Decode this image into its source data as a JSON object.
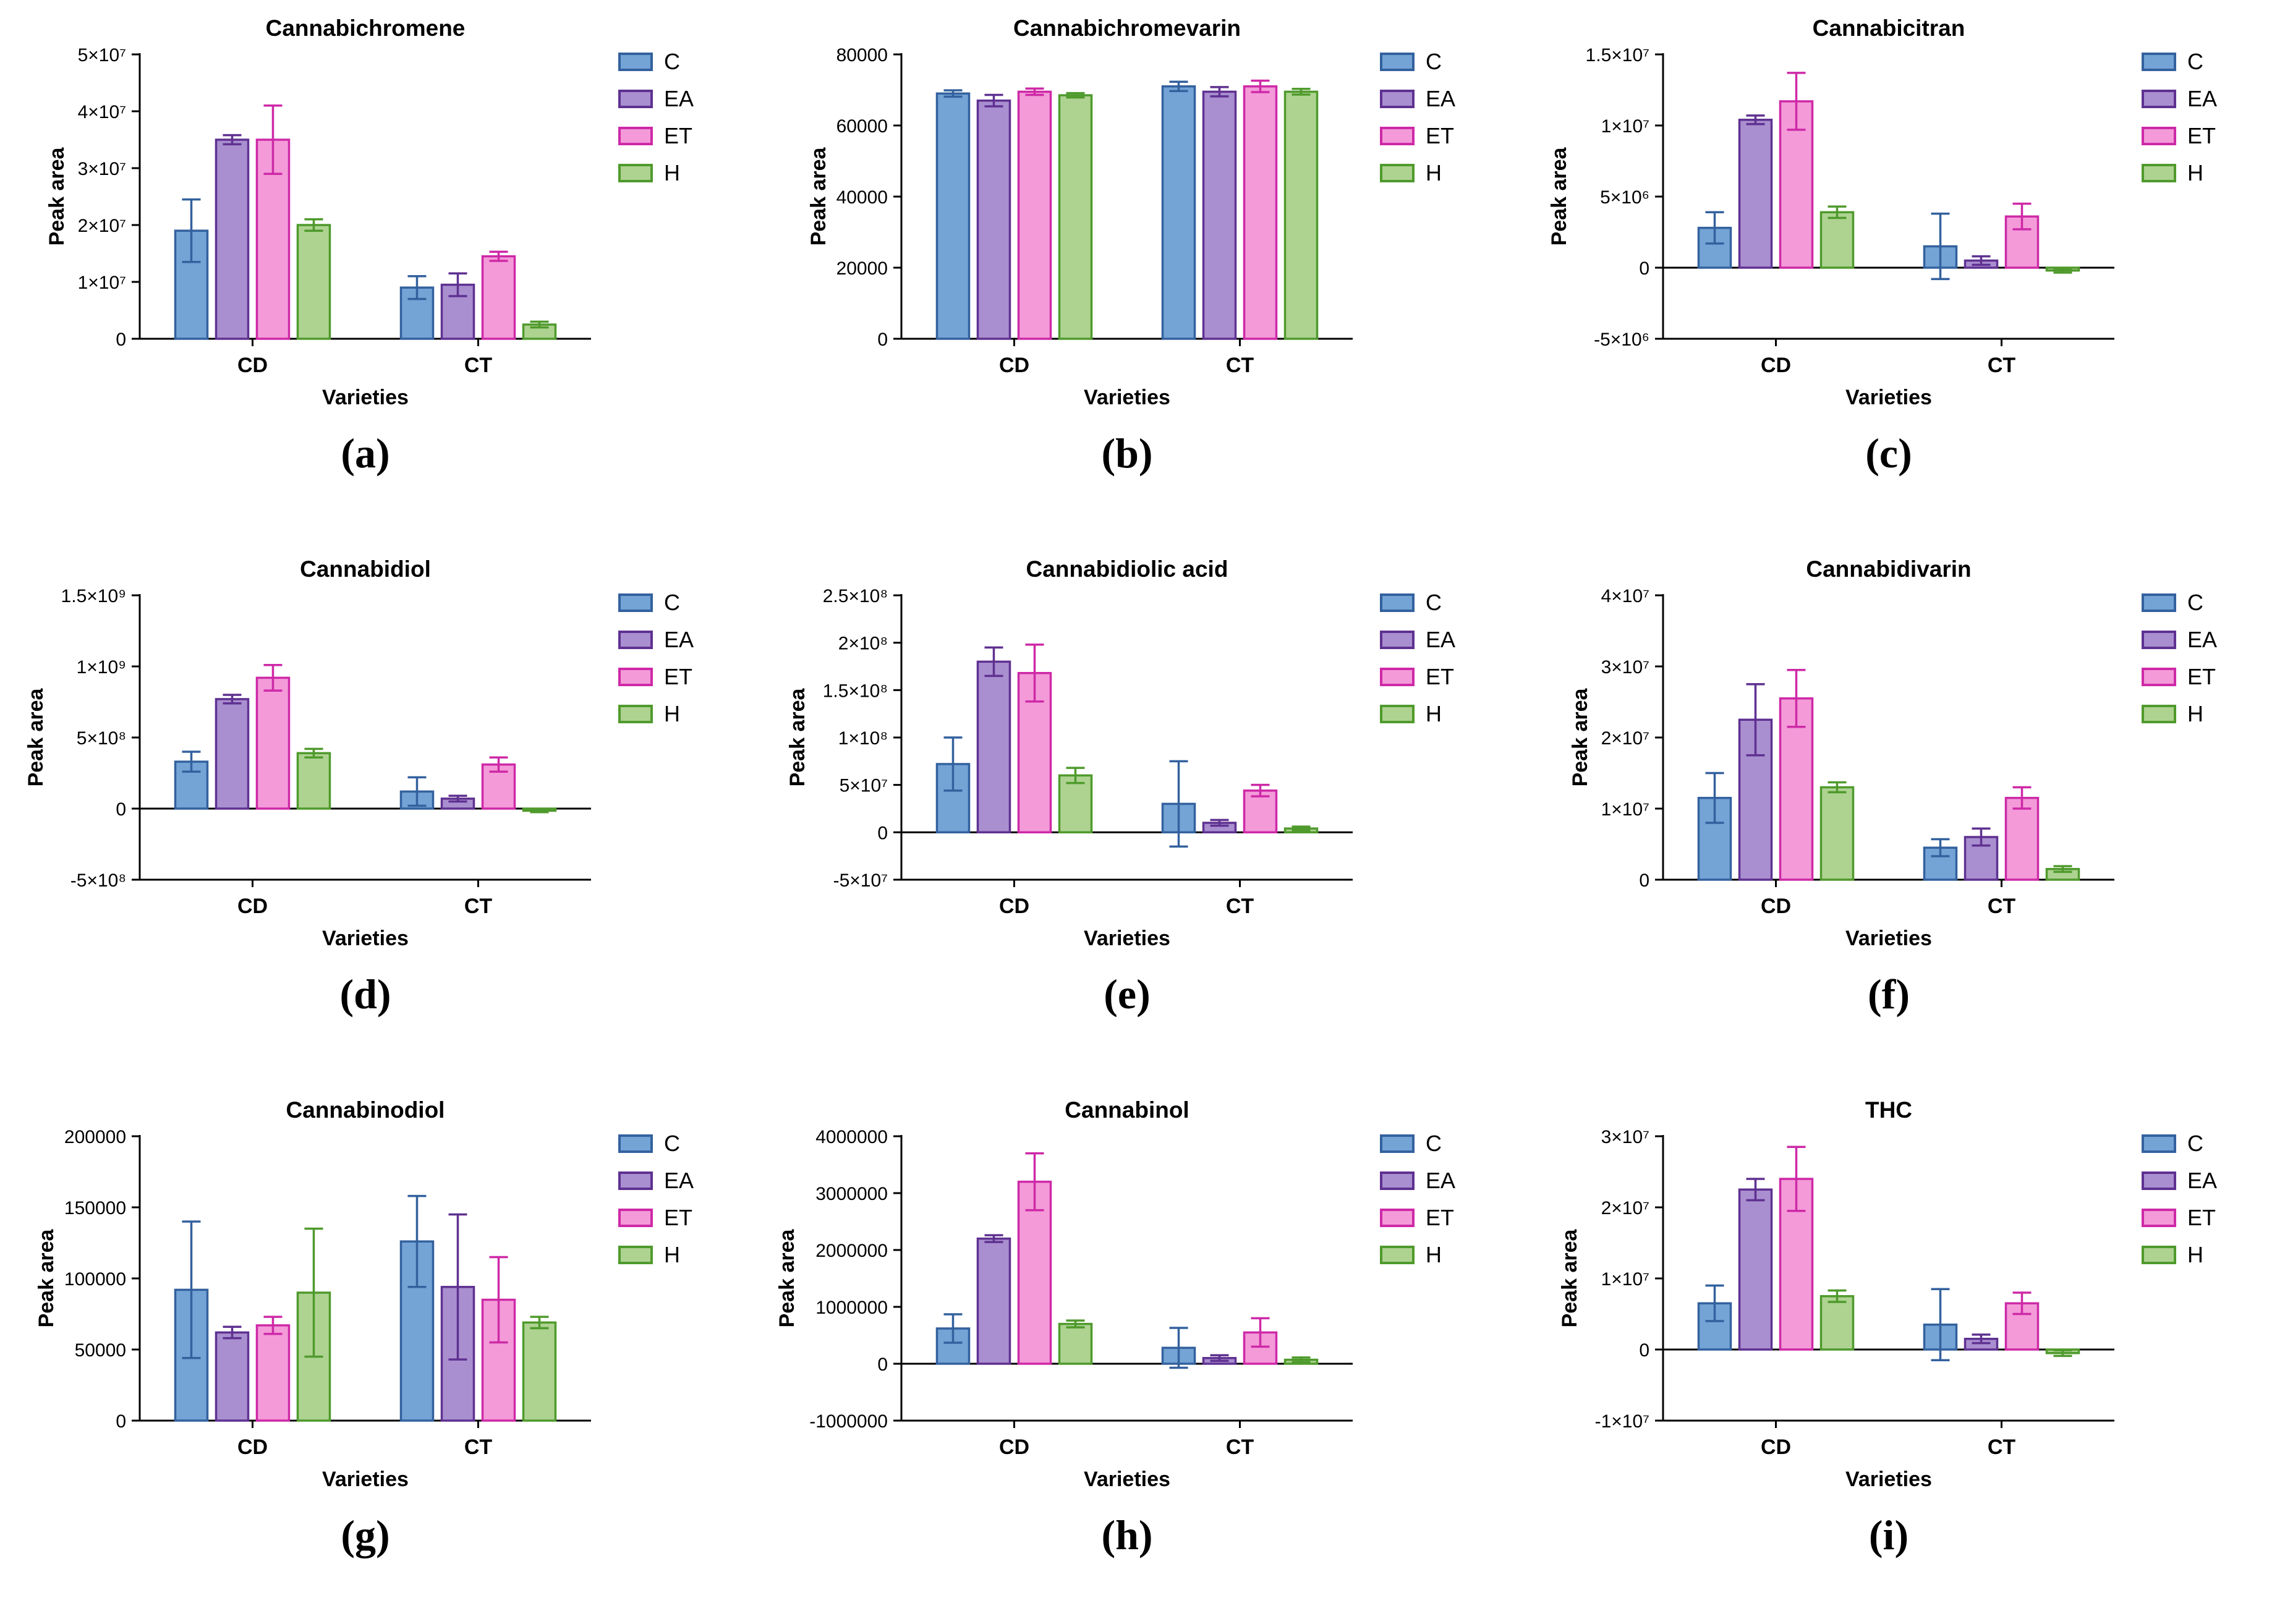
{
  "figure": {
    "background": "#ffffff",
    "series_styles": [
      {
        "name": "C",
        "fill": "#74a3d6",
        "edge": "#33619e"
      },
      {
        "name": "EA",
        "fill": "#a98fd0",
        "edge": "#5f3191"
      },
      {
        "name": "ET",
        "fill": "#f49ad9",
        "edge": "#ce29a7"
      },
      {
        "name": "H",
        "fill": "#aed391",
        "edge": "#4f9a2c"
      }
    ]
  },
  "chart_data": [
    {
      "type": "bar",
      "panel_label": "(a)",
      "title": "Cannabichromene",
      "xlabel": "Varieties",
      "ylabel": "Peak area",
      "categories": [
        "CD",
        "CT"
      ],
      "ylim": [
        0,
        50000000.0
      ],
      "yticks": [
        0,
        10000000.0,
        20000000.0,
        30000000.0,
        40000000.0,
        50000000.0
      ],
      "ytick_labels": [
        "0",
        "1×10⁷",
        "2×10⁷",
        "3×10⁷",
        "4×10⁷",
        "5×10⁷"
      ],
      "legend": [
        "C",
        "EA",
        "ET",
        "H"
      ],
      "series": [
        {
          "name": "C",
          "values": [
            19000000.0,
            9000000.0
          ],
          "errors": [
            5500000.0,
            2000000.0
          ]
        },
        {
          "name": "EA",
          "values": [
            35000000.0,
            9500000.0
          ],
          "errors": [
            800000.0,
            2000000.0
          ]
        },
        {
          "name": "ET",
          "values": [
            35000000.0,
            14500000.0
          ],
          "errors": [
            6000000.0,
            800000.0
          ]
        },
        {
          "name": "H",
          "values": [
            20000000.0,
            2500000.0
          ],
          "errors": [
            1000000.0,
            500000.0
          ]
        }
      ]
    },
    {
      "type": "bar",
      "panel_label": "(b)",
      "title": "Cannabichromevarin",
      "xlabel": "Varieties",
      "ylabel": "Peak area",
      "categories": [
        "CD",
        "CT"
      ],
      "ylim": [
        0,
        80000
      ],
      "yticks": [
        0,
        20000,
        40000,
        60000,
        80000
      ],
      "ytick_labels": [
        "0",
        "20000",
        "40000",
        "60000",
        "80000"
      ],
      "legend": [
        "C",
        "EA",
        "ET",
        "H"
      ],
      "series": [
        {
          "name": "C",
          "values": [
            69000,
            71000
          ],
          "errors": [
            900,
            1300
          ]
        },
        {
          "name": "EA",
          "values": [
            67000,
            69500
          ],
          "errors": [
            1600,
            1300
          ]
        },
        {
          "name": "ET",
          "values": [
            69500,
            71000
          ],
          "errors": [
            900,
            1600
          ]
        },
        {
          "name": "H",
          "values": [
            68500,
            69500
          ],
          "errors": [
            600,
            800
          ]
        }
      ]
    },
    {
      "type": "bar",
      "panel_label": "(c)",
      "title": "Cannabicitran",
      "xlabel": "Varieties",
      "ylabel": "Peak area",
      "categories": [
        "CD",
        "CT"
      ],
      "ylim": [
        -5000000.0,
        15000000.0
      ],
      "yticks": [
        -5000000.0,
        0,
        5000000.0,
        10000000.0,
        15000000.0
      ],
      "ytick_labels": [
        "-5×10⁶",
        "0",
        "5×10⁶",
        "1×10⁷",
        "1.5×10⁷"
      ],
      "legend": [
        "C",
        "EA",
        "ET",
        "H"
      ],
      "series": [
        {
          "name": "C",
          "values": [
            2800000.0,
            1500000.0
          ],
          "errors": [
            1100000.0,
            2300000.0
          ]
        },
        {
          "name": "EA",
          "values": [
            10400000.0,
            500000.0
          ],
          "errors": [
            300000.0,
            300000.0
          ]
        },
        {
          "name": "ET",
          "values": [
            11700000.0,
            3600000.0
          ],
          "errors": [
            2000000.0,
            900000.0
          ]
        },
        {
          "name": "H",
          "values": [
            3900000.0,
            -200000.0
          ],
          "errors": [
            400000.0,
            150000.0
          ]
        }
      ]
    },
    {
      "type": "bar",
      "panel_label": "(d)",
      "title": "Cannabidiol",
      "xlabel": "Varieties",
      "ylabel": "Peak area",
      "categories": [
        "CD",
        "CT"
      ],
      "ylim": [
        -500000000.0,
        1500000000.0
      ],
      "yticks": [
        -500000000.0,
        0,
        500000000.0,
        1000000000.0,
        1500000000.0
      ],
      "ytick_labels": [
        "-5×10⁸",
        "0",
        "5×10⁸",
        "1×10⁹",
        "1.5×10⁹"
      ],
      "legend": [
        "C",
        "EA",
        "ET",
        "H"
      ],
      "series": [
        {
          "name": "C",
          "values": [
            330000000.0,
            120000000.0
          ],
          "errors": [
            70000000.0,
            100000000.0
          ]
        },
        {
          "name": "EA",
          "values": [
            770000000.0,
            70000000.0
          ],
          "errors": [
            30000000.0,
            20000000.0
          ]
        },
        {
          "name": "ET",
          "values": [
            920000000.0,
            310000000.0
          ],
          "errors": [
            90000000.0,
            50000000.0
          ]
        },
        {
          "name": "H",
          "values": [
            390000000.0,
            -15000000.0
          ],
          "errors": [
            30000000.0,
            10000000.0
          ]
        }
      ]
    },
    {
      "type": "bar",
      "panel_label": "(e)",
      "title": "Cannabidiolic acid",
      "xlabel": "Varieties",
      "ylabel": "Peak area",
      "categories": [
        "CD",
        "CT"
      ],
      "ylim": [
        -50000000.0,
        250000000.0
      ],
      "yticks": [
        -50000000.0,
        0,
        50000000.0,
        100000000.0,
        150000000.0,
        200000000.0,
        250000000.0
      ],
      "ytick_labels": [
        "-5×10⁷",
        "0",
        "5×10⁷",
        "1×10⁸",
        "1.5×10⁸",
        "2×10⁸",
        "2.5×10⁸"
      ],
      "legend": [
        "C",
        "EA",
        "ET",
        "H"
      ],
      "series": [
        {
          "name": "C",
          "values": [
            72000000.0,
            30000000.0
          ],
          "errors": [
            28000000.0,
            45000000.0
          ]
        },
        {
          "name": "EA",
          "values": [
            180000000.0,
            10000000.0
          ],
          "errors": [
            15000000.0,
            3000000.0
          ]
        },
        {
          "name": "ET",
          "values": [
            168000000.0,
            44000000.0
          ],
          "errors": [
            30000000.0,
            6000000.0
          ]
        },
        {
          "name": "H",
          "values": [
            60000000.0,
            4000000.0
          ],
          "errors": [
            8000000.0,
            2000000.0
          ]
        }
      ]
    },
    {
      "type": "bar",
      "panel_label": "(f)",
      "title": "Cannabidivarin",
      "xlabel": "Varieties",
      "ylabel": "Peak area",
      "categories": [
        "CD",
        "CT"
      ],
      "ylim": [
        0,
        40000000.0
      ],
      "yticks": [
        0,
        10000000.0,
        20000000.0,
        30000000.0,
        40000000.0
      ],
      "ytick_labels": [
        "0",
        "1×10⁷",
        "2×10⁷",
        "3×10⁷",
        "4×10⁷"
      ],
      "legend": [
        "C",
        "EA",
        "ET",
        "H"
      ],
      "series": [
        {
          "name": "C",
          "values": [
            11500000.0,
            4500000.0
          ],
          "errors": [
            3500000.0,
            1200000.0
          ]
        },
        {
          "name": "EA",
          "values": [
            22500000.0,
            6000000.0
          ],
          "errors": [
            5000000.0,
            1200000.0
          ]
        },
        {
          "name": "ET",
          "values": [
            25500000.0,
            11500000.0
          ],
          "errors": [
            4000000.0,
            1500000.0
          ]
        },
        {
          "name": "H",
          "values": [
            13000000.0,
            1500000.0
          ],
          "errors": [
            700000.0,
            400000.0
          ]
        }
      ]
    },
    {
      "type": "bar",
      "panel_label": "(g)",
      "title": "Cannabinodiol",
      "xlabel": "Varieties",
      "ylabel": "Peak area",
      "categories": [
        "CD",
        "CT"
      ],
      "ylim": [
        0,
        200000
      ],
      "yticks": [
        0,
        50000,
        100000,
        150000,
        200000
      ],
      "ytick_labels": [
        "0",
        "50000",
        "100000",
        "150000",
        "200000"
      ],
      "legend": [
        "C",
        "EA",
        "ET",
        "H"
      ],
      "series": [
        {
          "name": "C",
          "values": [
            92000,
            126000
          ],
          "errors": [
            48000,
            32000
          ]
        },
        {
          "name": "EA",
          "values": [
            62000,
            94000
          ],
          "errors": [
            4000,
            51000
          ]
        },
        {
          "name": "ET",
          "values": [
            67000,
            85000
          ],
          "errors": [
            6000,
            30000
          ]
        },
        {
          "name": "H",
          "values": [
            90000,
            69000
          ],
          "errors": [
            45000,
            4000
          ]
        }
      ]
    },
    {
      "type": "bar",
      "panel_label": "(h)",
      "title": "Cannabinol",
      "xlabel": "Varieties",
      "ylabel": "Peak area",
      "categories": [
        "CD",
        "CT"
      ],
      "ylim": [
        -1000000.0,
        4000000.0
      ],
      "yticks": [
        -1000000.0,
        0,
        1000000.0,
        2000000.0,
        3000000.0,
        4000000.0
      ],
      "ytick_labels": [
        "-1000000",
        "0",
        "1000000",
        "2000000",
        "3000000",
        "4000000"
      ],
      "legend": [
        "C",
        "EA",
        "ET",
        "H"
      ],
      "series": [
        {
          "name": "C",
          "values": [
            620000,
            280000
          ],
          "errors": [
            250000,
            350000
          ]
        },
        {
          "name": "EA",
          "values": [
            2200000,
            100000
          ],
          "errors": [
            60000,
            50000
          ]
        },
        {
          "name": "ET",
          "values": [
            3200000,
            550000
          ],
          "errors": [
            500000,
            250000
          ]
        },
        {
          "name": "H",
          "values": [
            700000,
            70000
          ],
          "errors": [
            60000,
            40000
          ]
        }
      ]
    },
    {
      "type": "bar",
      "panel_label": "(i)",
      "title": "THC",
      "xlabel": "Varieties",
      "ylabel": "Peak area",
      "categories": [
        "CD",
        "CT"
      ],
      "ylim": [
        -10000000.0,
        30000000.0
      ],
      "yticks": [
        -10000000.0,
        0,
        10000000.0,
        20000000.0,
        30000000.0
      ],
      "ytick_labels": [
        "-1×10⁷",
        "0",
        "1×10⁷",
        "2×10⁷",
        "3×10⁷"
      ],
      "legend": [
        "C",
        "EA",
        "ET",
        "H"
      ],
      "series": [
        {
          "name": "C",
          "values": [
            6500000.0,
            3500000.0
          ],
          "errors": [
            2500000.0,
            5000000.0
          ]
        },
        {
          "name": "EA",
          "values": [
            22500000.0,
            1500000.0
          ],
          "errors": [
            1500000.0,
            600000.0
          ]
        },
        {
          "name": "ET",
          "values": [
            24000000.0,
            6500000.0
          ],
          "errors": [
            4500000.0,
            1500000.0
          ]
        },
        {
          "name": "H",
          "values": [
            7500000.0,
            -500000.0
          ],
          "errors": [
            800000.0,
            400000.0
          ]
        }
      ]
    }
  ]
}
